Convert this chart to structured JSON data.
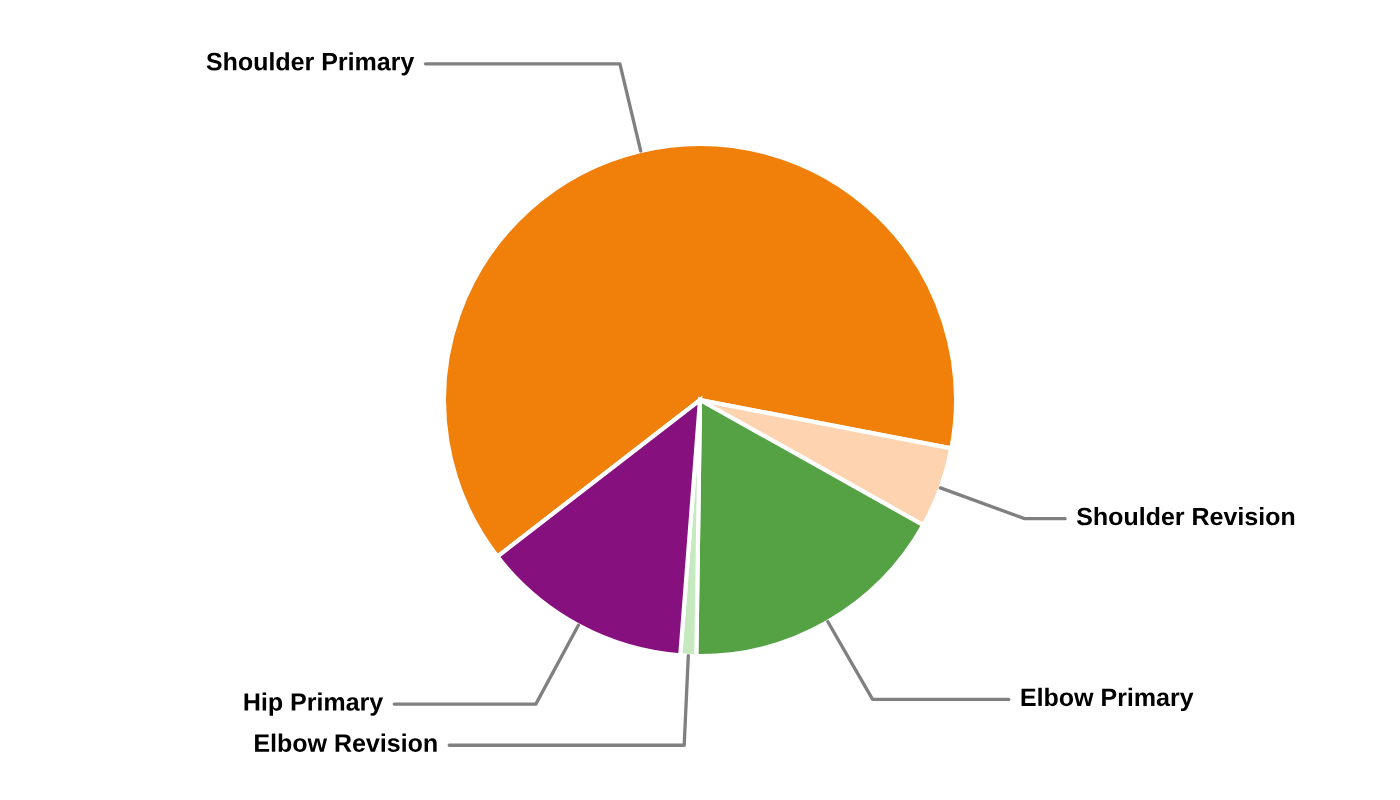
{
  "chart_data": {
    "type": "pie",
    "categories": [
      "Shoulder Primary",
      "Shoulder Revision",
      "Elbow Primary",
      "Elbow Revision",
      "Hip Primary"
    ],
    "values": [
      63.5,
      5.1,
      17.1,
      1.0,
      13.3
    ],
    "colors": [
      "#f0800a",
      "#fdd3b0",
      "#55a245",
      "#c7e9c0",
      "#86107e"
    ],
    "legend": false
  }
}
